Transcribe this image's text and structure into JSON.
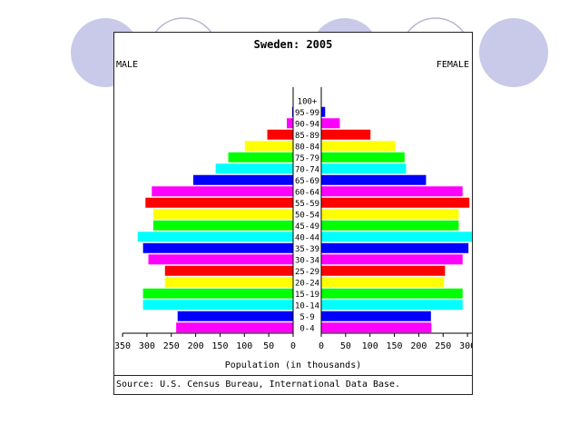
{
  "colors": {
    "background_circle": "#c9c9ea",
    "circle_outline": "#b3b3d0",
    "bar_cycle": [
      "#ff00ff",
      "#0000ff",
      "#00ffff",
      "#00ff00",
      "#ffff00",
      "#ff0000"
    ],
    "panel_border": "#222222"
  },
  "chart_data": {
    "type": "bar",
    "orientation": "population-pyramid",
    "title": "Sweden: 2005",
    "left_label": "MALE",
    "right_label": "FEMALE",
    "xlabel": "Population (in thousands)",
    "source": "Source: U.S. Census Bureau, International Data Base.",
    "xlim": [
      0,
      350
    ],
    "x_ticks": [
      350,
      300,
      250,
      200,
      150,
      100,
      50,
      0
    ],
    "x_tick_labels": [
      "350",
      "300",
      "250",
      "200",
      "150",
      "100",
      "50",
      "0"
    ],
    "categories": [
      "0-4",
      "5-9",
      "10-14",
      "15-19",
      "20-24",
      "25-29",
      "30-34",
      "35-39",
      "40-44",
      "45-49",
      "50-54",
      "55-59",
      "60-64",
      "65-69",
      "70-74",
      "75-79",
      "80-84",
      "85-89",
      "90-94",
      "95-99",
      "100+"
    ],
    "series": [
      {
        "name": "MALE",
        "values": [
          240,
          237,
          308,
          308,
          263,
          263,
          297,
          308,
          319,
          287,
          287,
          303,
          290,
          205,
          159,
          133,
          99,
          53,
          13,
          2,
          0
        ]
      },
      {
        "name": "FEMALE",
        "values": [
          226,
          225,
          290,
          290,
          252,
          254,
          290,
          302,
          309,
          282,
          282,
          304,
          290,
          215,
          174,
          171,
          152,
          101,
          38,
          8,
          1
        ]
      }
    ],
    "grid": false,
    "legend": "none"
  }
}
